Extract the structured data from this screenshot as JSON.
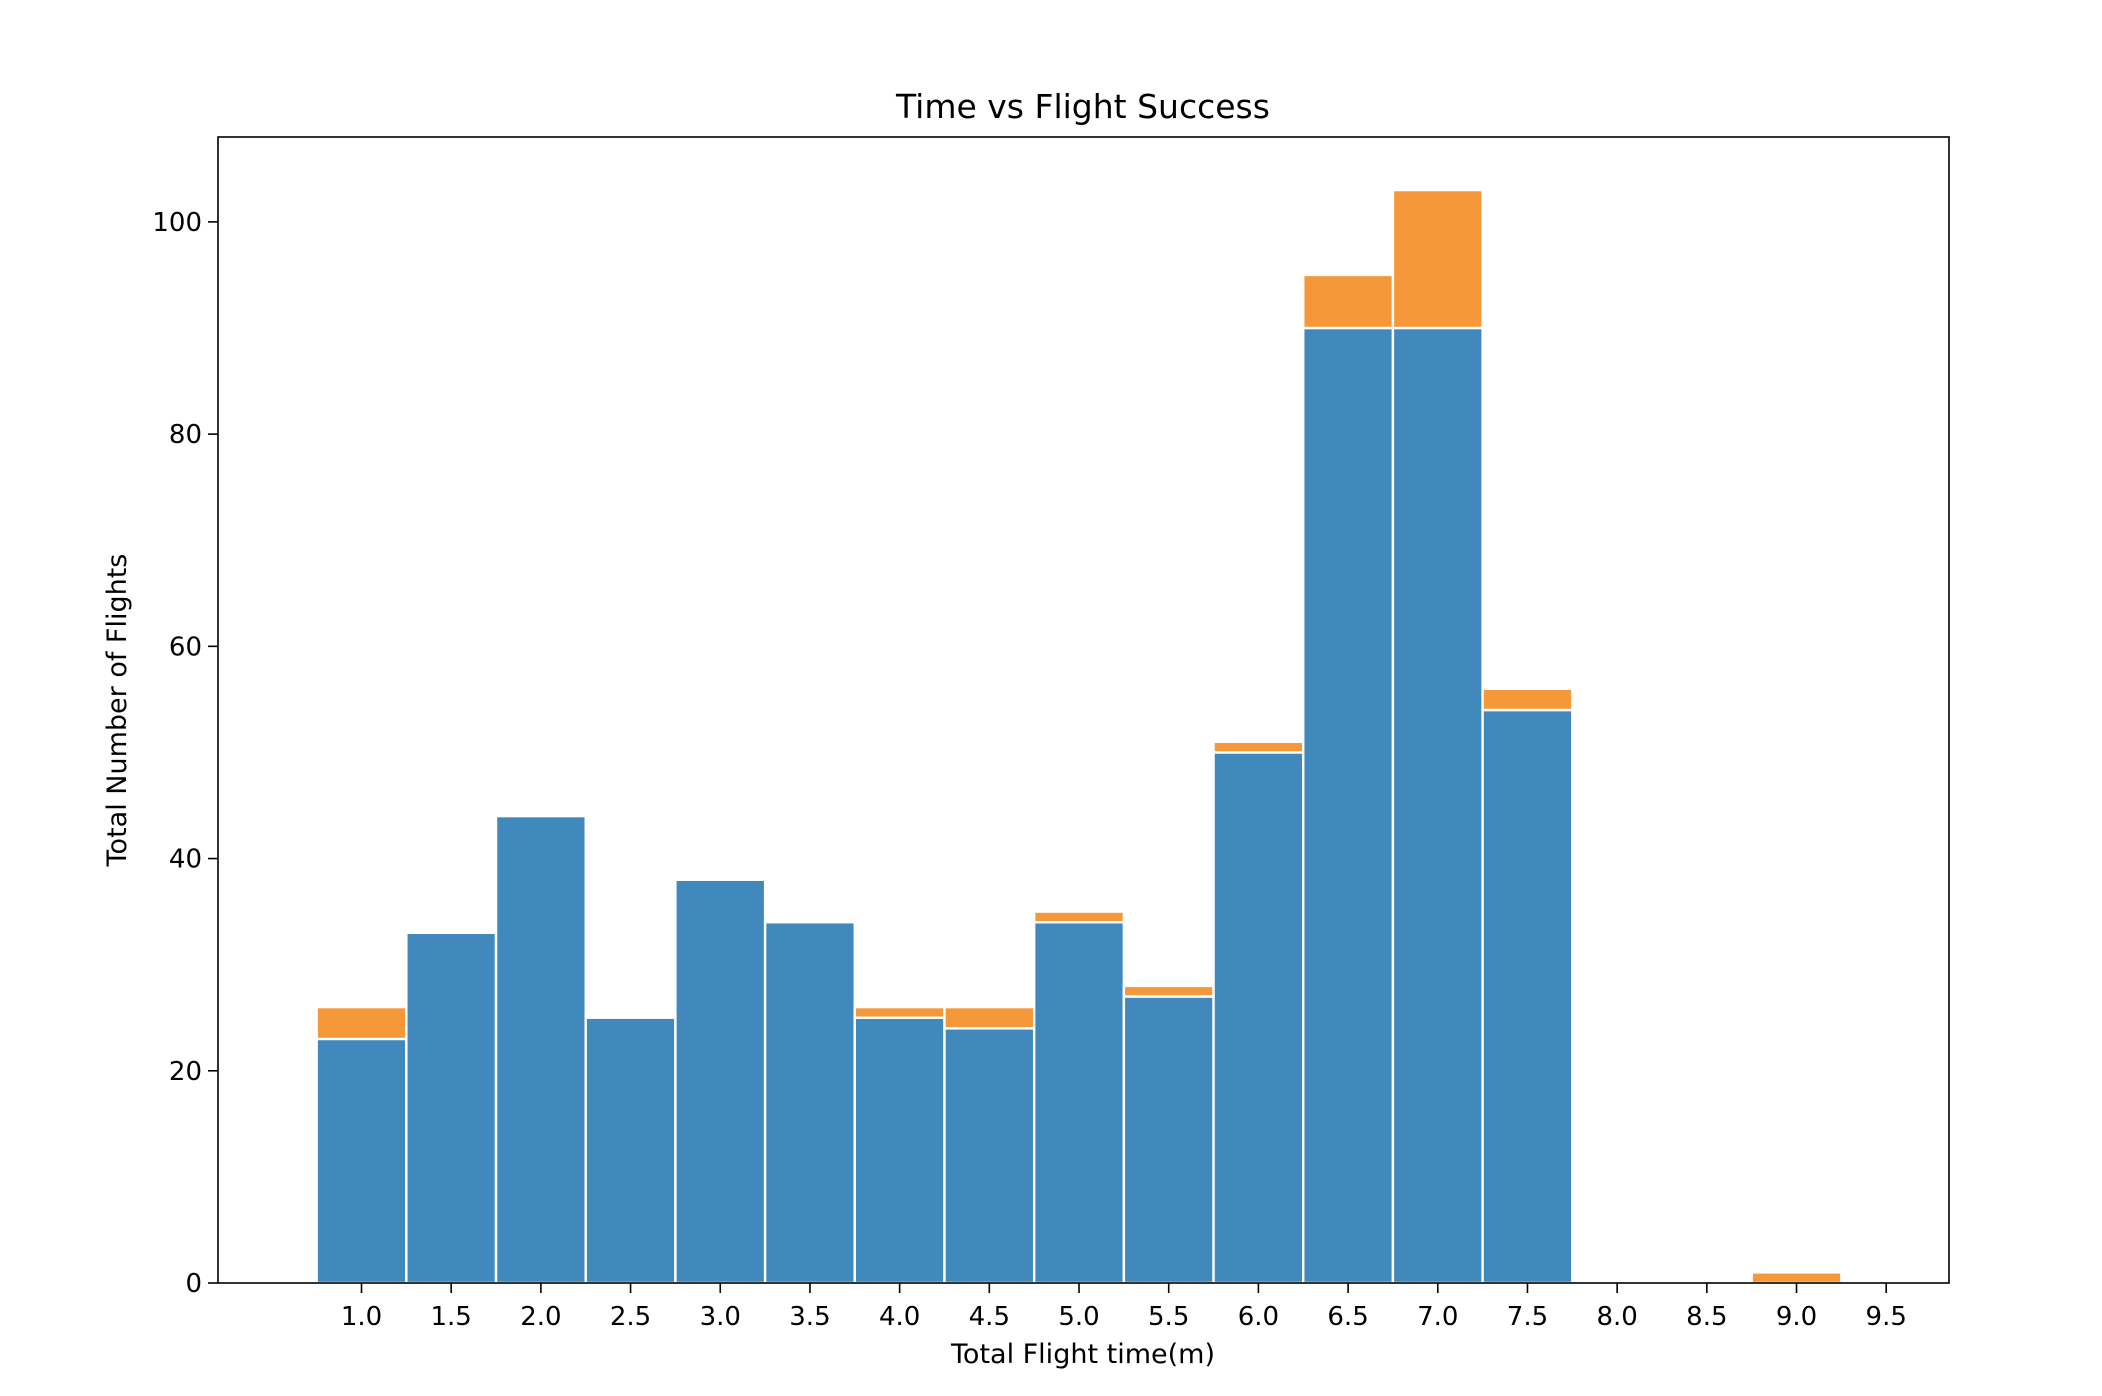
{
  "chart_data": {
    "type": "bar",
    "stacked": true,
    "title": "Time vs Flight Success",
    "xlabel": "Total Flight time(m)",
    "ylabel": "Total Number of Flights",
    "xlim": [
      0.2,
      9.85
    ],
    "ylim": [
      0,
      108
    ],
    "bar_width": 0.5,
    "x_ticks": [
      "1.0",
      "1.5",
      "2.0",
      "2.5",
      "3.0",
      "3.5",
      "4.0",
      "4.5",
      "5.0",
      "5.5",
      "6.0",
      "6.5",
      "7.0",
      "7.5",
      "8.0",
      "8.5",
      "9.0",
      "9.5"
    ],
    "y_ticks": [
      "0",
      "20",
      "40",
      "60",
      "80",
      "100"
    ],
    "grid": false,
    "legend": "none",
    "x": [
      1.0,
      1.5,
      2.0,
      2.5,
      3.0,
      3.5,
      4.0,
      4.5,
      5.0,
      5.5,
      6.0,
      6.5,
      7.0,
      7.5,
      8.0,
      8.5,
      9.0
    ],
    "series": [
      {
        "color": "#4189bd",
        "values": [
          23,
          33,
          44,
          25,
          38,
          34,
          25,
          24,
          34,
          27,
          50,
          90,
          90,
          54,
          0,
          0,
          0
        ]
      },
      {
        "color": "#f4983a",
        "values": [
          3,
          0,
          0,
          0,
          0,
          0,
          1,
          2,
          1,
          1,
          1,
          5,
          13,
          2,
          0,
          0,
          1
        ]
      }
    ]
  }
}
